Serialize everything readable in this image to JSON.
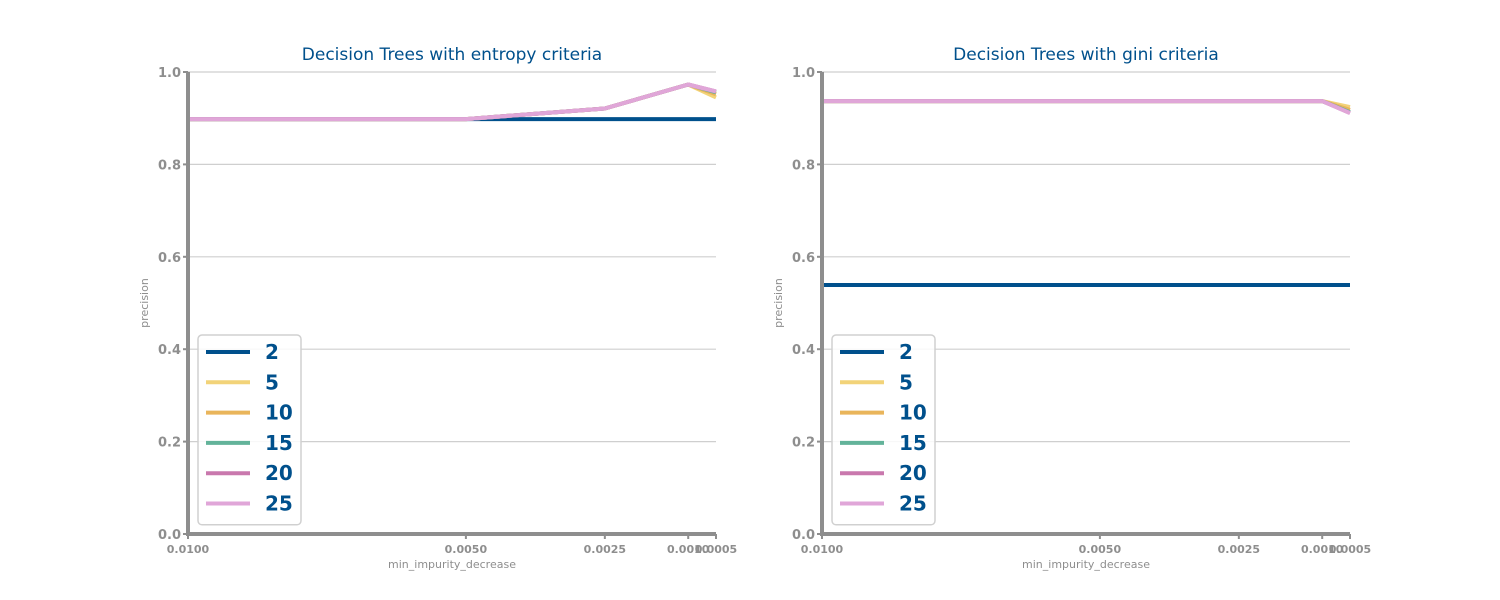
{
  "chart_data": [
    {
      "type": "line",
      "title": "Decision Trees with entropy criteria",
      "xlabel": "min_impurity_decrease",
      "ylabel": "precision",
      "x": [
        0.01,
        0.005,
        0.0025,
        0.001,
        0.0005
      ],
      "x_tick_labels": [
        "0.0100",
        "0.0050",
        "0.0025",
        "0.0010",
        "0.0005"
      ],
      "x_axis_inverted": true,
      "ylim": [
        0,
        1
      ],
      "y_ticks": [
        0.0,
        0.2,
        0.4,
        0.6,
        0.8,
        1.0
      ],
      "y_tick_labels": [
        "0.0",
        "0.2",
        "0.4",
        "0.6",
        "0.8",
        "1.0"
      ],
      "grid": "horizontal",
      "legend_position": "lower-left",
      "series": [
        {
          "name": "2",
          "color": "#00508c",
          "values": [
            0.898,
            0.898,
            0.898,
            0.898,
            0.898
          ]
        },
        {
          "name": "5",
          "color": "#f2d379",
          "values": [
            0.898,
            0.898,
            0.921,
            0.973,
            0.945
          ]
        },
        {
          "name": "10",
          "color": "#e9b55b",
          "values": [
            0.898,
            0.898,
            0.921,
            0.973,
            0.952
          ]
        },
        {
          "name": "15",
          "color": "#63b39a",
          "values": [
            0.898,
            0.898,
            0.921,
            0.973,
            0.956
          ]
        },
        {
          "name": "20",
          "color": "#c978ad",
          "values": [
            0.898,
            0.898,
            0.921,
            0.973,
            0.958
          ]
        },
        {
          "name": "25",
          "color": "#e0a6d8",
          "values": [
            0.898,
            0.898,
            0.921,
            0.973,
            0.958
          ]
        }
      ]
    },
    {
      "type": "line",
      "title": "Decision Trees with gini criteria",
      "xlabel": "min_impurity_decrease",
      "ylabel": "precision",
      "x": [
        0.01,
        0.005,
        0.0025,
        0.001,
        0.0005
      ],
      "x_tick_labels": [
        "0.0100",
        "0.0050",
        "0.0025",
        "0.0010",
        "0.0005"
      ],
      "x_axis_inverted": true,
      "ylim": [
        0,
        1
      ],
      "y_ticks": [
        0.0,
        0.2,
        0.4,
        0.6,
        0.8,
        1.0
      ],
      "y_tick_labels": [
        "0.0",
        "0.2",
        "0.4",
        "0.6",
        "0.8",
        "1.0"
      ],
      "grid": "horizontal",
      "legend_position": "lower-left",
      "series": [
        {
          "name": "2",
          "color": "#00508c",
          "values": [
            0.539,
            0.539,
            0.539,
            0.539,
            0.539
          ]
        },
        {
          "name": "5",
          "color": "#f2d379",
          "values": [
            0.937,
            0.937,
            0.937,
            0.937,
            0.924
          ]
        },
        {
          "name": "10",
          "color": "#e9b55b",
          "values": [
            0.937,
            0.937,
            0.937,
            0.937,
            0.918
          ]
        },
        {
          "name": "15",
          "color": "#63b39a",
          "values": [
            0.937,
            0.937,
            0.937,
            0.937,
            0.913
          ]
        },
        {
          "name": "20",
          "color": "#c978ad",
          "values": [
            0.937,
            0.937,
            0.937,
            0.937,
            0.911
          ]
        },
        {
          "name": "25",
          "color": "#e0a6d8",
          "values": [
            0.937,
            0.937,
            0.937,
            0.937,
            0.911
          ]
        }
      ]
    }
  ],
  "style": {
    "title_color": "#00508c",
    "legend_text_color": "#00508c",
    "axis_color": "#8e8e8e",
    "grid_color": "#cfcfcf"
  }
}
